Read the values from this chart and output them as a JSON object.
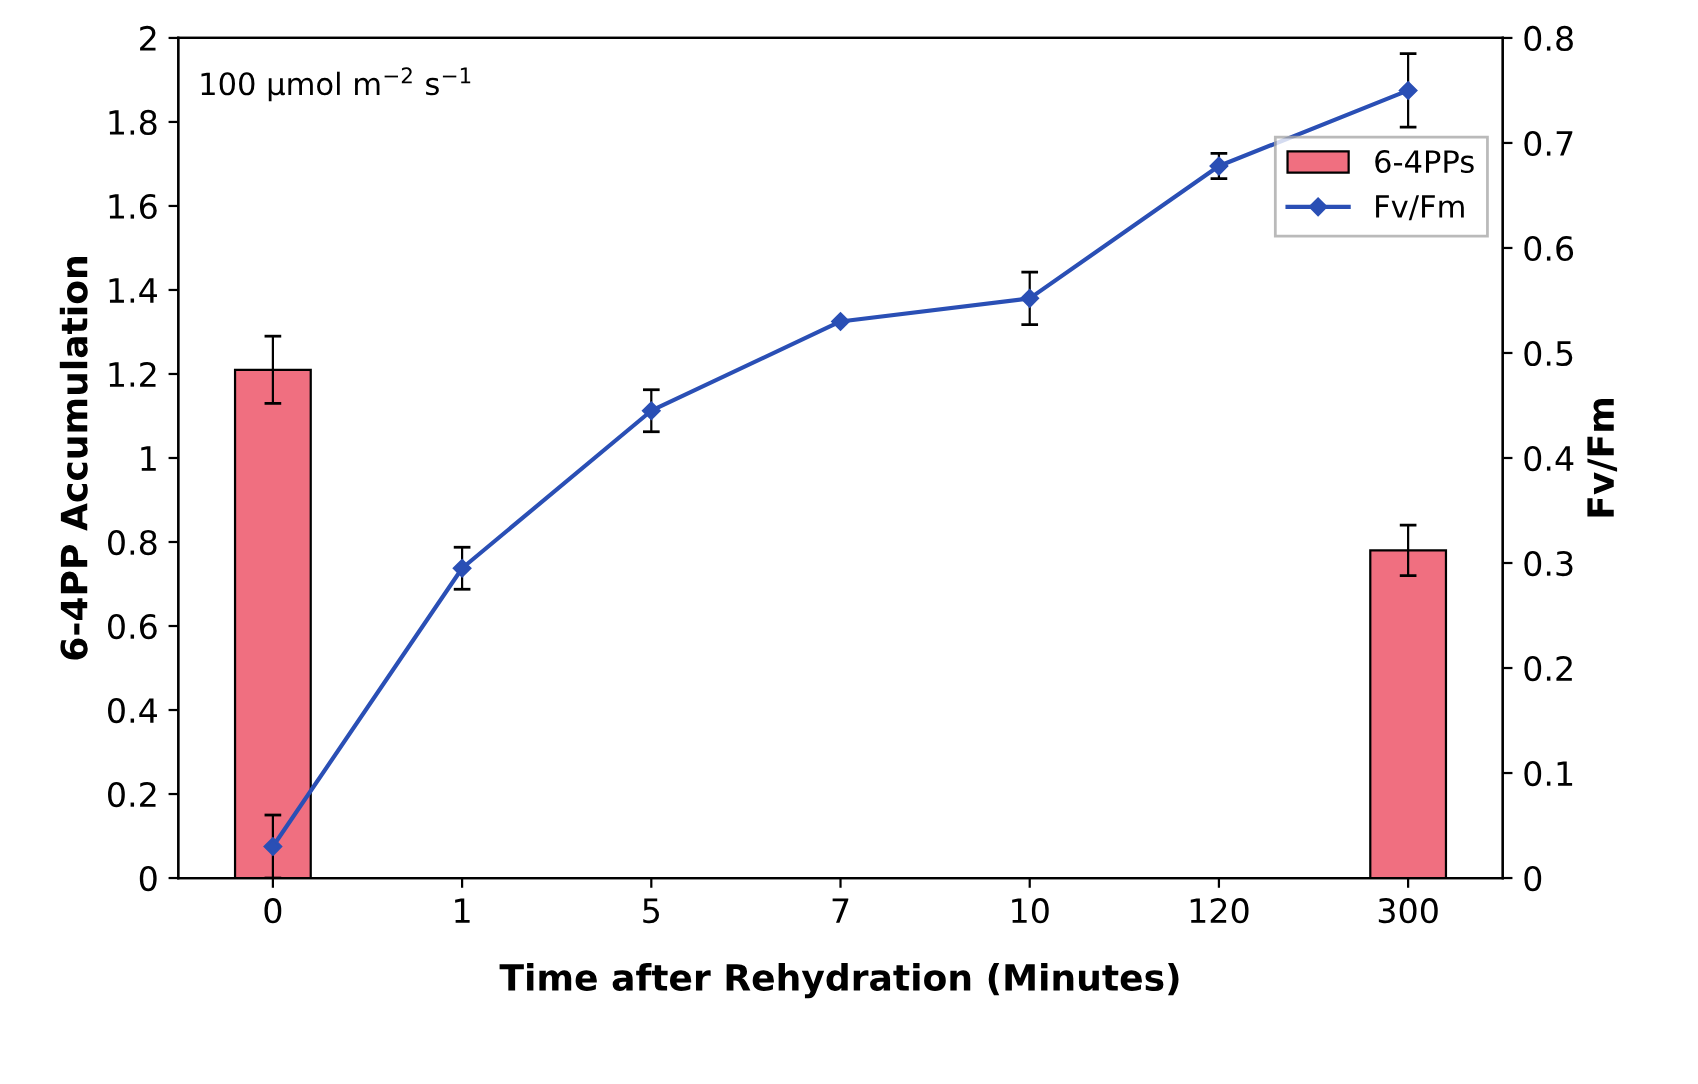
{
  "chart_data": {
    "type": "bar",
    "xlabel": "Time after Rehydration (Minutes)",
    "ylabel": "6-4PP Accumulation",
    "y2label": "Fv/Fm",
    "categories": [
      "0",
      "1",
      "5",
      "7",
      "10",
      "120",
      "300"
    ],
    "series": [
      {
        "name": "6-4PPs",
        "color": "#f06f80",
        "values": [
          1.21,
          null,
          null,
          null,
          null,
          null,
          0.78
        ],
        "errors": [
          0.08,
          null,
          null,
          null,
          null,
          null,
          0.06
        ]
      },
      {
        "name": "Fv/Fm",
        "type": "line",
        "axis": "y2",
        "color": "#2a4fb5",
        "marker": "diamond",
        "values": [
          0.03,
          0.295,
          0.445,
          0.53,
          0.552,
          0.678,
          0.75
        ],
        "errors": [
          0.03,
          0.02,
          0.02,
          null,
          0.025,
          0.012,
          0.035
        ]
      }
    ],
    "ylim": [
      0,
      2
    ],
    "yticks": [
      0,
      0.2,
      0.4,
      0.6,
      0.8,
      1,
      1.2,
      1.4,
      1.6,
      1.8,
      2
    ],
    "y2lim": [
      0,
      0.8
    ],
    "y2ticks": [
      0,
      0.1,
      0.2,
      0.3,
      0.4,
      0.5,
      0.6,
      0.7,
      0.8
    ],
    "annotations": [
      "100 μmol m$^{−2}$ s$^{−1}$"
    ],
    "legend": "top right",
    "grid": false
  }
}
